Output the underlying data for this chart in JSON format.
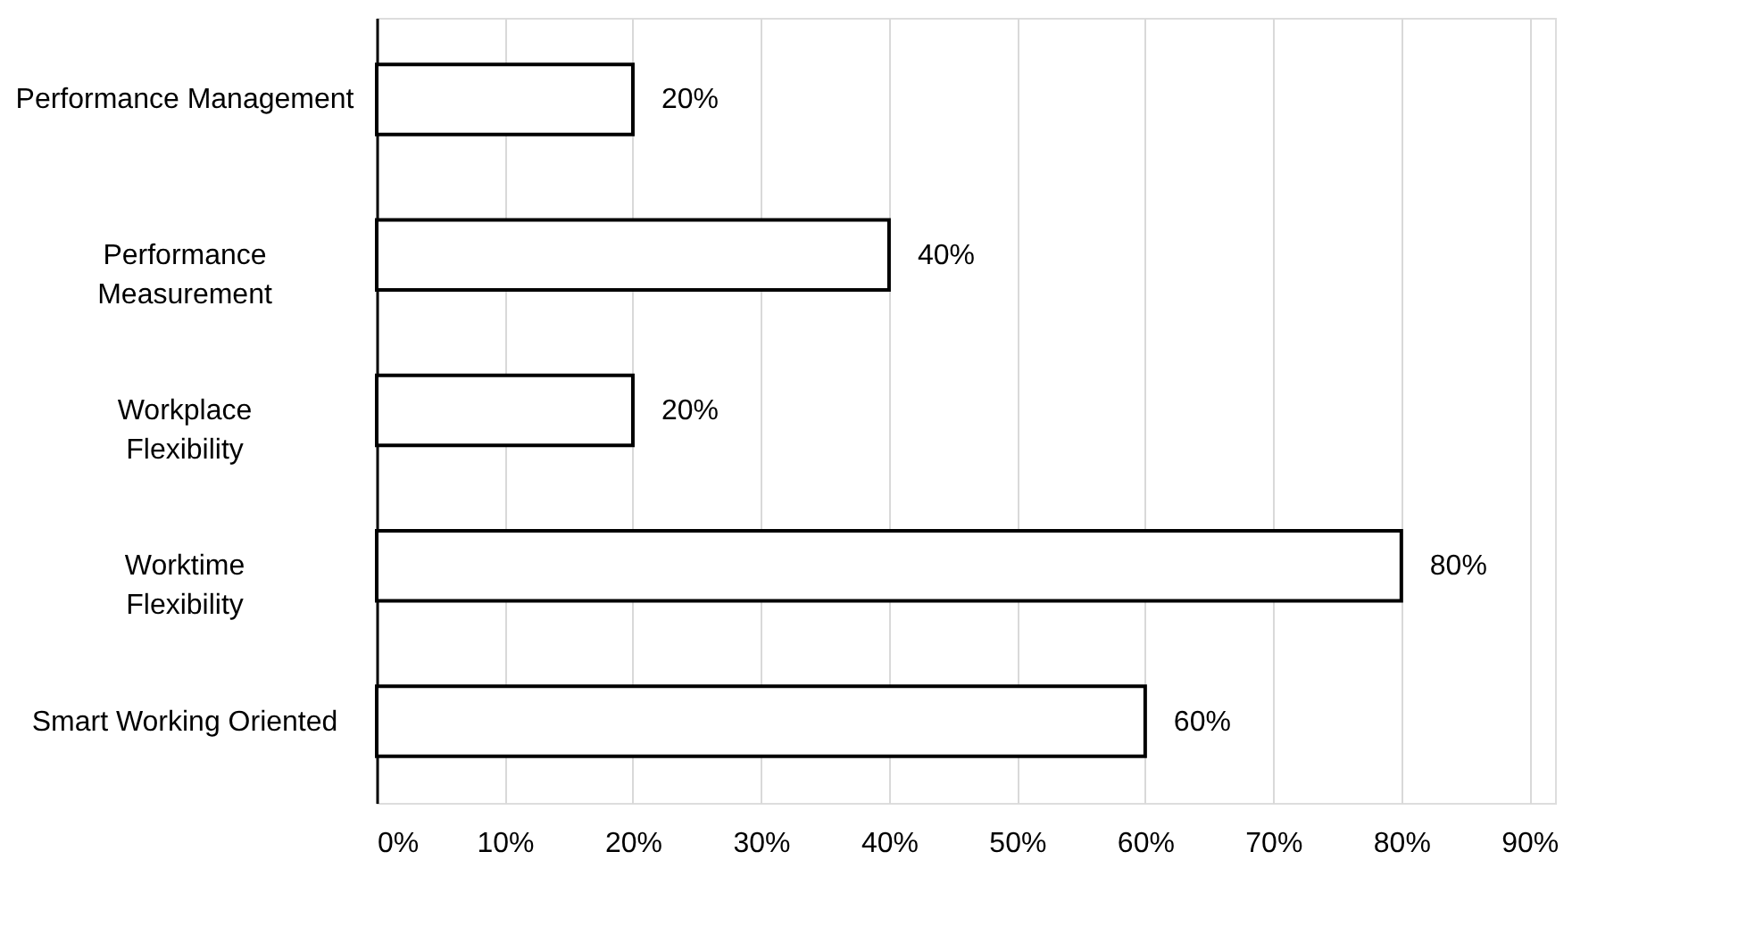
{
  "chart_data": {
    "type": "bar",
    "orientation": "horizontal",
    "categories": [
      "Performance Management",
      "Performance\nMeasurement",
      "Workplace\nFlexibility",
      "Worktime\nFlexibility",
      "Smart Working Oriented"
    ],
    "values": [
      20,
      40,
      20,
      80,
      60
    ],
    "value_labels": [
      "20%",
      "40%",
      "20%",
      "80%",
      "60%"
    ],
    "color": "#ffffff",
    "xlim": [
      0,
      92
    ],
    "xticks": [
      {
        "value": 0,
        "label": "0%"
      },
      {
        "value": 10,
        "label": "10%"
      },
      {
        "value": 20,
        "label": "20%"
      },
      {
        "value": 30,
        "label": "30%"
      },
      {
        "value": 40,
        "label": "40%"
      },
      {
        "value": 50,
        "label": "50%"
      },
      {
        "value": 60,
        "label": "60%"
      },
      {
        "value": 70,
        "label": "70%"
      },
      {
        "value": 80,
        "label": "80%"
      },
      {
        "value": 90,
        "label": "90%"
      }
    ],
    "grid": "x"
  }
}
